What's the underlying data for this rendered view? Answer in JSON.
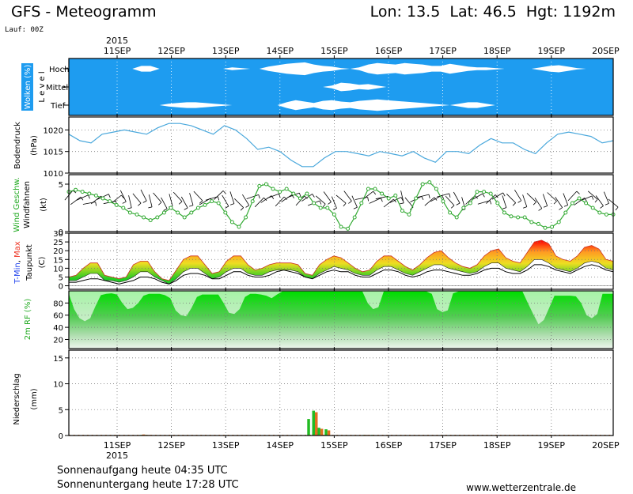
{
  "header": {
    "title": "GFS - Meteogramm",
    "location": "Lon: 13.5  Lat: 46.5  Hgt: 1192m",
    "run": "Lauf: 00Z"
  },
  "footer": {
    "sunrise": "Sonnenaufgang heute 04:35 UTC",
    "sunset": "Sonnenuntergang heute 17:28 UTC",
    "source": "www.wetterzentrale.de"
  },
  "colors": {
    "cloud_bg": "#1e9cf0",
    "pressure_line": "#4aa8dc",
    "wind_line": "#33aa33",
    "humidity_fill": "#11cc11",
    "precip_green": "#22bb22",
    "precip_orange": "#e07020",
    "tmax": "#ee3322",
    "tmin": "#2244ee"
  },
  "chart_data": {
    "type": "meteogram",
    "year_label": "2015",
    "dates": [
      "11SEP",
      "12SEP",
      "13SEP",
      "14SEP",
      "15SEP",
      "16SEP",
      "17SEP",
      "18SEP",
      "19SEP",
      "20SEP"
    ],
    "panels": [
      {
        "id": "clouds",
        "ylabel": "Wolken (%)",
        "ylabel2": "L e v e l",
        "levels": [
          "Hoch",
          "Mittel",
          "Tief"
        ],
        "cover": {
          "hoch": [
            0,
            0,
            0,
            0,
            0,
            0,
            0,
            0,
            40,
            40,
            0,
            0,
            0,
            0,
            0,
            0,
            0,
            0,
            20,
            10,
            0,
            0,
            30,
            50,
            70,
            80,
            90,
            60,
            40,
            30,
            10,
            0,
            20,
            60,
            80,
            70,
            60,
            80,
            70,
            60,
            40,
            40,
            70,
            50,
            30,
            20,
            20,
            10,
            0,
            0,
            0,
            0,
            20,
            40,
            50,
            30,
            10,
            0,
            0,
            0,
            0
          ],
          "mittel": [
            0,
            0,
            0,
            0,
            0,
            0,
            0,
            0,
            0,
            0,
            0,
            0,
            0,
            0,
            0,
            0,
            0,
            0,
            0,
            0,
            0,
            0,
            0,
            0,
            0,
            0,
            0,
            0,
            0,
            20,
            60,
            50,
            30,
            40,
            20,
            0,
            0,
            0,
            0,
            0,
            0,
            0,
            0,
            0,
            0,
            0,
            0,
            0,
            0,
            0,
            0,
            0,
            0,
            0,
            0,
            0,
            0,
            0,
            0,
            0,
            0
          ],
          "tief": [
            0,
            0,
            0,
            0,
            0,
            0,
            0,
            0,
            0,
            0,
            0,
            20,
            30,
            40,
            40,
            30,
            20,
            10,
            0,
            0,
            0,
            0,
            0,
            0,
            40,
            70,
            50,
            30,
            60,
            70,
            50,
            40,
            60,
            70,
            80,
            70,
            60,
            50,
            40,
            30,
            20,
            10,
            0,
            20,
            40,
            40,
            20,
            0,
            0,
            0,
            0,
            0,
            0,
            0,
            0,
            0,
            0,
            0,
            0,
            0,
            0
          ]
        }
      },
      {
        "id": "pressure",
        "ylabel": "Bodendruck",
        "unit": "(hPa)",
        "ylim": [
          1010,
          1023
        ],
        "ticks": [
          1010,
          1015,
          1020
        ],
        "values": [
          1019,
          1017.5,
          1017,
          1019,
          1019.5,
          1020,
          1019.5,
          1019,
          1020.5,
          1021.5,
          1021.5,
          1021,
          1020,
          1019,
          1021,
          1020,
          1018,
          1015.5,
          1016,
          1015,
          1013,
          1011.5,
          1011.5,
          1013.5,
          1015,
          1015,
          1014.5,
          1014,
          1015,
          1014.5,
          1014,
          1015,
          1013.5,
          1012.5,
          1015,
          1015,
          1014.5,
          1016.5,
          1018,
          1017,
          1017,
          1015.5,
          1014.5,
          1017,
          1019,
          1019.5,
          1019,
          1018.5,
          1017,
          1017.5
        ]
      },
      {
        "id": "wind",
        "ylabel": "Wind Geschw.",
        "ylabel2": "Windfahnen",
        "unit": "(kt)",
        "ylim": [
          0,
          6
        ],
        "ticks": [
          0,
          5
        ],
        "values": [
          4.2,
          4.4,
          4.2,
          4,
          3.8,
          3.5,
          3.2,
          2.8,
          2.5,
          2,
          1.8,
          1.5,
          1.2,
          1.5,
          2,
          2.5,
          2,
          1.5,
          2,
          2.5,
          2.8,
          3.2,
          3,
          2,
          1,
          0.5,
          1.5,
          3.2,
          4.8,
          5,
          4.5,
          4.2,
          4.5,
          4,
          3.5,
          4,
          3,
          2.5,
          2.5,
          1.8,
          0.5,
          0.3,
          1.5,
          3,
          4.5,
          4.5,
          4,
          3.5,
          3.8,
          2.2,
          1.8,
          3.5,
          5,
          5.2,
          4.5,
          3.2,
          2,
          1.5,
          2.5,
          3,
          4.2,
          4.2,
          4,
          3,
          2,
          1.6,
          1.5,
          1.5,
          1,
          0.8,
          0.4,
          0.5,
          1,
          2,
          3,
          3.5,
          3,
          2.5,
          2,
          1.8,
          1.8
        ]
      },
      {
        "id": "temperature",
        "ylabel": "T-Min, Max",
        "ylabel_parts": [
          "T-",
          "Min",
          ", ",
          "Max"
        ],
        "ylabel2": "Taupunkt",
        "unit": "(C)",
        "ylim": [
          -2,
          30
        ],
        "ticks": [
          0,
          5,
          10,
          15,
          20,
          25,
          30
        ],
        "tmax": [
          5,
          6,
          10,
          13,
          13,
          6,
          5,
          4,
          5,
          12,
          14,
          14,
          8,
          4,
          3,
          9,
          15,
          17,
          17,
          12,
          7,
          8,
          14,
          17,
          17,
          12,
          9,
          10,
          12,
          13,
          13,
          13,
          12,
          7,
          6,
          12,
          15,
          17,
          16,
          13,
          10,
          8,
          9,
          14,
          17,
          17,
          14,
          11,
          9,
          12,
          16,
          19,
          20,
          16,
          13,
          11,
          10,
          12,
          17,
          20,
          21,
          16,
          14,
          13,
          19,
          25,
          26,
          24,
          17,
          15,
          14,
          17,
          22,
          23,
          21,
          15,
          14
        ],
        "tmin": [
          3,
          3,
          5,
          7,
          7,
          3,
          3,
          2,
          3,
          5,
          8,
          8,
          5,
          3,
          1,
          4,
          8,
          10,
          10,
          7,
          4,
          5,
          8,
          10,
          10,
          7,
          6,
          6,
          8,
          9,
          9,
          9,
          8,
          5,
          4,
          7,
          9,
          11,
          10,
          9,
          7,
          6,
          6,
          9,
          11,
          11,
          9,
          7,
          6,
          8,
          10,
          12,
          12,
          10,
          9,
          8,
          7,
          8,
          11,
          13,
          13,
          10,
          9,
          8,
          11,
          15,
          15,
          13,
          10,
          9,
          8,
          10,
          13,
          14,
          13,
          10,
          9
        ],
        "dewpoint": [
          2,
          2,
          3,
          4,
          4,
          3,
          2,
          1,
          2,
          3,
          5,
          5,
          4,
          2,
          1,
          3,
          6,
          7,
          7,
          6,
          4,
          4,
          6,
          8,
          8,
          6,
          5,
          5,
          6,
          8,
          9,
          8,
          7,
          5,
          4,
          6,
          8,
          9,
          8,
          8,
          6,
          5,
          5,
          7,
          9,
          9,
          8,
          6,
          5,
          6,
          8,
          9,
          9,
          8,
          7,
          6,
          6,
          7,
          9,
          10,
          10,
          8,
          7,
          7,
          9,
          12,
          12,
          11,
          9,
          8,
          7,
          9,
          11,
          12,
          11,
          9,
          8
        ]
      },
      {
        "id": "humidity",
        "ylabel": "2m RF (%)",
        "ylim": [
          5,
          100
        ],
        "ticks": [
          20,
          40,
          60,
          80
        ],
        "values": [
          95,
          70,
          55,
          50,
          55,
          75,
          93,
          95,
          96,
          94,
          80,
          70,
          72,
          80,
          92,
          95,
          95,
          95,
          93,
          88,
          68,
          60,
          58,
          72,
          90,
          94,
          94,
          94,
          94,
          80,
          64,
          62,
          70,
          90,
          95,
          95,
          94,
          92,
          88,
          94,
          99,
          99,
          99,
          99,
          99,
          99,
          99,
          99,
          99,
          99,
          99,
          99,
          99,
          99,
          99,
          99,
          80,
          70,
          73,
          99,
          99,
          99,
          99,
          99,
          99,
          99,
          99,
          99,
          95,
          70,
          65,
          68,
          96,
          99,
          99,
          99,
          99,
          99,
          99,
          99,
          99,
          99,
          99,
          99,
          99,
          99,
          80,
          62,
          45,
          52,
          72,
          92,
          92,
          92,
          92,
          91,
          80,
          60,
          55,
          62,
          95,
          95,
          95
        ]
      },
      {
        "id": "precip",
        "ylabel": "Niederschlag",
        "unit": "(mm)",
        "ylim": [
          0,
          16.5
        ],
        "ticks": [
          0,
          5,
          10,
          15
        ],
        "bars": [
          {
            "t": 0.135,
            "green": 0.1,
            "orange": 0.2
          },
          {
            "t": 0.145,
            "green": 0.1,
            "orange": 0.1
          },
          {
            "t": 0.443,
            "green": 3.2,
            "orange": 0
          },
          {
            "t": 0.452,
            "green": 4.8,
            "orange": 4.5
          },
          {
            "t": 0.462,
            "green": 1.5,
            "orange": 1.3
          },
          {
            "t": 0.475,
            "green": 1.2,
            "orange": 1.0
          },
          {
            "t": 0.545,
            "green": 0.1,
            "orange": 0.1
          },
          {
            "t": 0.56,
            "green": 0.1,
            "orange": 0
          }
        ]
      }
    ]
  }
}
